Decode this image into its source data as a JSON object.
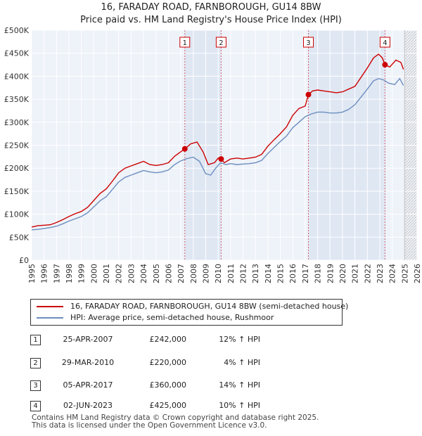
{
  "title_line1": "16, FARADAY ROAD, FARNBOROUGH, GU14 8BW",
  "title_line2": "Price paid vs. HM Land Registry's House Price Index (HPI)",
  "chart_data": {
    "type": "line",
    "y_ticks": [
      "£0",
      "£50K",
      "£100K",
      "£150K",
      "£200K",
      "£250K",
      "£300K",
      "£350K",
      "£400K",
      "£450K",
      "£500K"
    ],
    "x_ticks": [
      "1995",
      "1996",
      "1997",
      "1998",
      "1999",
      "2000",
      "2001",
      "2002",
      "2003",
      "2004",
      "2005",
      "2006",
      "2007",
      "2008",
      "2009",
      "2010",
      "2011",
      "2012",
      "2013",
      "2014",
      "2015",
      "2016",
      "2017",
      "2018",
      "2019",
      "2020",
      "2021",
      "2022",
      "2023",
      "2024",
      "2025",
      "2026"
    ],
    "xlim": [
      1995,
      2026
    ],
    "ylim": [
      0,
      500000
    ],
    "series": [
      {
        "name": "16, FARADAY ROAD, FARNBOROUGH, GU14 8BW (semi-detached house)",
        "color": "#cc0000",
        "points": [
          [
            1995.0,
            72000
          ],
          [
            1995.5,
            75000
          ],
          [
            1996.0,
            76000
          ],
          [
            1996.5,
            77000
          ],
          [
            1997.0,
            82000
          ],
          [
            1997.5,
            88000
          ],
          [
            1998.0,
            95000
          ],
          [
            1998.5,
            101000
          ],
          [
            1999.0,
            106000
          ],
          [
            1999.5,
            115000
          ],
          [
            2000.0,
            130000
          ],
          [
            2000.5,
            145000
          ],
          [
            2001.0,
            155000
          ],
          [
            2001.5,
            172000
          ],
          [
            2002.0,
            190000
          ],
          [
            2002.5,
            200000
          ],
          [
            2003.0,
            205000
          ],
          [
            2003.5,
            210000
          ],
          [
            2004.0,
            215000
          ],
          [
            2004.5,
            208000
          ],
          [
            2005.0,
            206000
          ],
          [
            2005.5,
            208000
          ],
          [
            2006.0,
            212000
          ],
          [
            2006.5,
            226000
          ],
          [
            2007.0,
            236000
          ],
          [
            2007.32,
            242000
          ],
          [
            2007.8,
            253000
          ],
          [
            2008.3,
            257000
          ],
          [
            2008.8,
            235000
          ],
          [
            2009.2,
            208000
          ],
          [
            2009.7,
            212000
          ],
          [
            2010.0,
            222000
          ],
          [
            2010.24,
            220000
          ],
          [
            2010.5,
            212000
          ],
          [
            2011.0,
            220000
          ],
          [
            2011.5,
            222000
          ],
          [
            2012.0,
            220000
          ],
          [
            2012.5,
            222000
          ],
          [
            2013.0,
            224000
          ],
          [
            2013.5,
            230000
          ],
          [
            2014.0,
            248000
          ],
          [
            2014.5,
            262000
          ],
          [
            2015.0,
            275000
          ],
          [
            2015.5,
            290000
          ],
          [
            2016.0,
            315000
          ],
          [
            2016.5,
            330000
          ],
          [
            2017.0,
            335000
          ],
          [
            2017.26,
            360000
          ],
          [
            2017.6,
            368000
          ],
          [
            2018.0,
            370000
          ],
          [
            2018.5,
            368000
          ],
          [
            2019.0,
            366000
          ],
          [
            2019.5,
            364000
          ],
          [
            2020.0,
            366000
          ],
          [
            2020.5,
            372000
          ],
          [
            2021.0,
            378000
          ],
          [
            2021.5,
            398000
          ],
          [
            2022.0,
            418000
          ],
          [
            2022.5,
            440000
          ],
          [
            2022.9,
            448000
          ],
          [
            2023.2,
            440000
          ],
          [
            2023.42,
            425000
          ],
          [
            2023.8,
            420000
          ],
          [
            2024.3,
            435000
          ],
          [
            2024.7,
            430000
          ],
          [
            2024.9,
            415000
          ]
        ]
      },
      {
        "name": "HPI: Average price, semi-detached house, Rushmoor",
        "color": "#6c8ebf",
        "points": [
          [
            1995.0,
            66000
          ],
          [
            1995.5,
            67000
          ],
          [
            1996.0,
            69000
          ],
          [
            1996.5,
            71000
          ],
          [
            1997.0,
            74000
          ],
          [
            1997.5,
            79000
          ],
          [
            1998.0,
            85000
          ],
          [
            1998.5,
            90000
          ],
          [
            1999.0,
            95000
          ],
          [
            1999.5,
            103000
          ],
          [
            2000.0,
            116000
          ],
          [
            2000.5,
            129000
          ],
          [
            2001.0,
            138000
          ],
          [
            2001.5,
            154000
          ],
          [
            2002.0,
            170000
          ],
          [
            2002.5,
            180000
          ],
          [
            2003.0,
            185000
          ],
          [
            2003.5,
            190000
          ],
          [
            2004.0,
            195000
          ],
          [
            2004.5,
            192000
          ],
          [
            2005.0,
            190000
          ],
          [
            2005.5,
            192000
          ],
          [
            2006.0,
            196000
          ],
          [
            2006.5,
            208000
          ],
          [
            2007.0,
            216000
          ],
          [
            2007.5,
            221000
          ],
          [
            2008.0,
            224000
          ],
          [
            2008.5,
            215000
          ],
          [
            2009.0,
            188000
          ],
          [
            2009.4,
            185000
          ],
          [
            2009.8,
            200000
          ],
          [
            2010.2,
            212000
          ],
          [
            2010.6,
            208000
          ],
          [
            2011.0,
            210000
          ],
          [
            2011.5,
            208000
          ],
          [
            2012.0,
            209000
          ],
          [
            2012.5,
            210000
          ],
          [
            2013.0,
            212000
          ],
          [
            2013.5,
            217000
          ],
          [
            2014.0,
            232000
          ],
          [
            2014.5,
            245000
          ],
          [
            2015.0,
            258000
          ],
          [
            2015.5,
            270000
          ],
          [
            2016.0,
            288000
          ],
          [
            2016.5,
            300000
          ],
          [
            2017.0,
            312000
          ],
          [
            2017.5,
            318000
          ],
          [
            2018.0,
            322000
          ],
          [
            2018.5,
            322000
          ],
          [
            2019.0,
            320000
          ],
          [
            2019.5,
            320000
          ],
          [
            2020.0,
            322000
          ],
          [
            2020.5,
            328000
          ],
          [
            2021.0,
            338000
          ],
          [
            2021.5,
            355000
          ],
          [
            2022.0,
            372000
          ],
          [
            2022.5,
            390000
          ],
          [
            2022.9,
            395000
          ],
          [
            2023.3,
            392000
          ],
          [
            2023.7,
            385000
          ],
          [
            2024.2,
            382000
          ],
          [
            2024.6,
            395000
          ],
          [
            2024.9,
            380000
          ]
        ]
      }
    ],
    "sales": [
      {
        "label": "1",
        "x": 2007.32,
        "value": 242000
      },
      {
        "label": "2",
        "x": 2010.24,
        "value": 220000
      },
      {
        "label": "3",
        "x": 2017.26,
        "value": 360000
      },
      {
        "label": "4",
        "x": 2023.42,
        "value": 425000
      }
    ],
    "shaded_ranges": [
      [
        2007.32,
        2010.24
      ],
      [
        2017.26,
        2023.42
      ]
    ],
    "forecast_start": 2025.0
  },
  "legend": {
    "property": "16, FARADAY ROAD, FARNBOROUGH, GU14 8BW (semi-detached house)",
    "hpi": "HPI: Average price, semi-detached house, Rushmoor"
  },
  "sales_table": [
    {
      "num": "1",
      "date": "25-APR-2007",
      "price": "£242,000",
      "hpi": "12% ↑ HPI"
    },
    {
      "num": "2",
      "date": "29-MAR-2010",
      "price": "£220,000",
      "hpi": "4% ↑ HPI"
    },
    {
      "num": "3",
      "date": "05-APR-2017",
      "price": "£360,000",
      "hpi": "14% ↑ HPI"
    },
    {
      "num": "4",
      "date": "02-JUN-2023",
      "price": "£425,000",
      "hpi": "10% ↑ HPI"
    }
  ],
  "footer_line1": "Contains HM Land Registry data © Crown copyright and database right 2025.",
  "footer_line2": "This data is licensed under the Open Government Licence v3.0."
}
